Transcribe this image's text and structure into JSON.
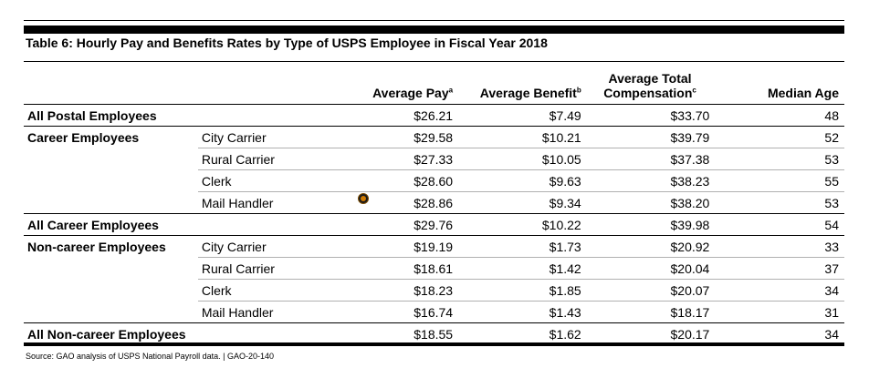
{
  "title": "Table 6: Hourly Pay and Benefits Rates by Type of USPS Employee in Fiscal Year 2018",
  "headers": {
    "avg_pay": "Average Pay",
    "avg_pay_note": "a",
    "avg_benefit": "Average Benefit",
    "avg_benefit_note": "b",
    "avg_total_line1": "Average Total",
    "avg_total_line2": "Compensation",
    "avg_total_note": "c",
    "median_age": "Median Age"
  },
  "rows": [
    {
      "group": "All Postal Employees",
      "sub": "",
      "pay": "$26.21",
      "benefit": "$7.49",
      "total": "$33.70",
      "age": "48"
    },
    {
      "group": "Career Employees",
      "sub": "City Carrier",
      "pay": "$29.58",
      "benefit": "$10.21",
      "total": "$39.79",
      "age": "52"
    },
    {
      "group": "",
      "sub": "Rural Carrier",
      "pay": "$27.33",
      "benefit": "$10.05",
      "total": "$37.38",
      "age": "53"
    },
    {
      "group": "",
      "sub": "Clerk",
      "pay": "$28.60",
      "benefit": "$9.63",
      "total": "$38.23",
      "age": "55"
    },
    {
      "group": "",
      "sub": "Mail Handler",
      "pay": "$28.86",
      "benefit": "$9.34",
      "total": "$38.20",
      "age": "53"
    },
    {
      "group": "All Career Employees",
      "sub": "",
      "pay": "$29.76",
      "benefit": "$10.22",
      "total": "$39.98",
      "age": "54"
    },
    {
      "group": "Non-career Employees",
      "sub": "City Carrier",
      "pay": "$19.19",
      "benefit": "$1.73",
      "total": "$20.92",
      "age": "33"
    },
    {
      "group": "",
      "sub": "Rural Carrier",
      "pay": "$18.61",
      "benefit": "$1.42",
      "total": "$20.04",
      "age": "37"
    },
    {
      "group": "",
      "sub": "Clerk",
      "pay": "$18.23",
      "benefit": "$1.85",
      "total": "$20.07",
      "age": "34"
    },
    {
      "group": "",
      "sub": "Mail Handler",
      "pay": "$16.74",
      "benefit": "$1.43",
      "total": "$18.17",
      "age": "31"
    },
    {
      "group": "All Non-career Employees",
      "sub": "",
      "pay": "$18.55",
      "benefit": "$1.62",
      "total": "$20.17",
      "age": "34"
    }
  ],
  "source": "Source: GAO analysis of USPS National Payroll data. | GAO-20-140"
}
